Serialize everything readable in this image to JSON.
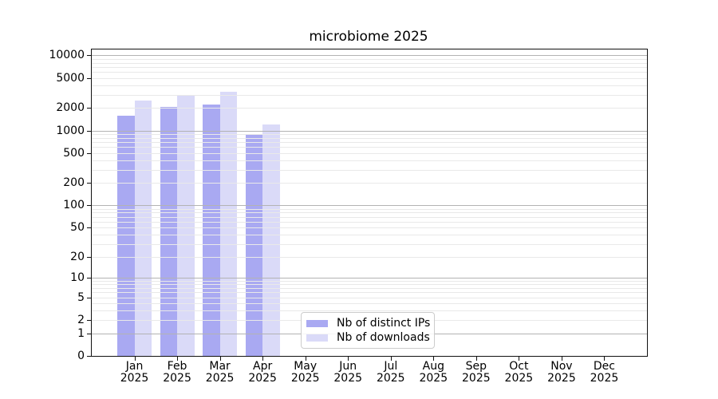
{
  "figure": {
    "title": "microbiome 2025"
  },
  "chart_data": {
    "type": "bar",
    "title": "microbiome 2025",
    "categories": [
      "Jan 2025",
      "Feb 2025",
      "Mar 2025",
      "Apr 2025",
      "May 2025",
      "Jun 2025",
      "Jul 2025",
      "Aug 2025",
      "Sep 2025",
      "Oct 2025",
      "Nov 2025",
      "Dec 2025"
    ],
    "category_month_line": [
      "Jan",
      "Feb",
      "Mar",
      "Apr",
      "May",
      "Jun",
      "Jul",
      "Aug",
      "Sep",
      "Oct",
      "Nov",
      "Dec"
    ],
    "category_year_line": "2025",
    "series": [
      {
        "name": "Nb of distinct IPs",
        "color": "#a9a9f2",
        "values": [
          1580,
          2070,
          2240,
          880,
          null,
          null,
          null,
          null,
          null,
          null,
          null,
          null
        ]
      },
      {
        "name": "Nb of downloads",
        "color": "#dadaf8",
        "values": [
          2490,
          2940,
          3260,
          1210,
          null,
          null,
          null,
          null,
          null,
          null,
          null,
          null
        ]
      }
    ],
    "y_scale": "log10(value+1) with 0 at baseline",
    "y_ticks": [
      0,
      1,
      2,
      5,
      10,
      20,
      50,
      100,
      200,
      500,
      1000,
      2000,
      5000,
      10000
    ],
    "ylim": [
      0,
      12000
    ],
    "grid": {
      "show": true,
      "major_color": "#b3b3b3",
      "minor_color": "#e9e9e9"
    },
    "legend": {
      "position": "bottom-center"
    },
    "axis_color": "#111111",
    "xlabel": "",
    "ylabel": ""
  }
}
